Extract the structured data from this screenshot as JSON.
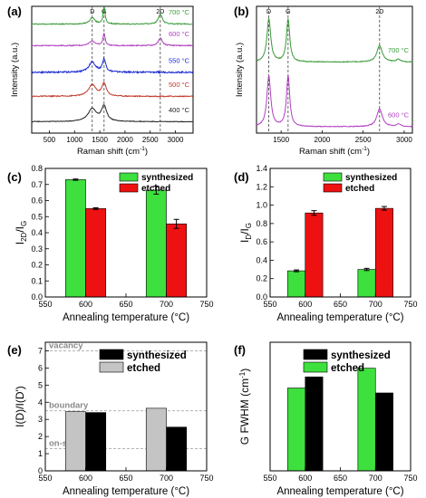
{
  "chart_data": [
    {
      "panel": "(a)",
      "type": "line",
      "xlabel": "Raman shift (cm",
      "xlabel_sup": "-1",
      "xlabel_end": ")",
      "ylabel": "Intensity (a.u.)",
      "xlim": [
        150,
        3350
      ],
      "x_ticks": [
        "500",
        "1000",
        "1500",
        "2000",
        "2500",
        "3000"
      ],
      "peak_markers": [
        {
          "label": "D",
          "x": 1350
        },
        {
          "label": "G",
          "x": 1585
        },
        {
          "label": "2D",
          "x": 2700
        }
      ],
      "series": [
        {
          "name": "700 °C",
          "color": "#3a9a3a",
          "offset": 0.86,
          "noise": 0.008,
          "peaks": [
            [
              1350,
              60,
              0.05
            ],
            [
              1585,
              25,
              0.13
            ],
            [
              2700,
              45,
              0.08
            ]
          ]
        },
        {
          "name": "600 °C",
          "color": "#b040c0",
          "offset": 0.69,
          "noise": 0.008,
          "peaks": [
            [
              1350,
              60,
              0.04
            ],
            [
              1585,
              25,
              0.1
            ],
            [
              2700,
              45,
              0.06
            ]
          ]
        },
        {
          "name": "550 °C",
          "color": "#1a2ad0",
          "offset": 0.48,
          "noise": 0.012,
          "peaks": [
            [
              1350,
              80,
              0.08
            ],
            [
              1585,
              40,
              0.1
            ]
          ]
        },
        {
          "name": "500 °C",
          "color": "#c0392b",
          "offset": 0.29,
          "noise": 0.008,
          "peaks": [
            [
              1350,
              90,
              0.09
            ],
            [
              1585,
              50,
              0.1
            ]
          ]
        },
        {
          "name": "400 °C",
          "color": "#222222",
          "offset": 0.09,
          "noise": 0.005,
          "peaks": [
            [
              1350,
              100,
              0.1
            ],
            [
              1585,
              60,
              0.12
            ]
          ]
        }
      ]
    },
    {
      "panel": "(b)",
      "type": "line",
      "xlabel": "Raman shift (cm",
      "xlabel_sup": "-1",
      "xlabel_end": ")",
      "ylabel": "Intensity (a.u.)",
      "xlim": [
        1200,
        3100
      ],
      "x_ticks": [
        "1500",
        "2000",
        "2500",
        "3000"
      ],
      "peak_markers": [
        {
          "label": "D",
          "x": 1350
        },
        {
          "label": "G",
          "x": 1585
        },
        {
          "label": "2D",
          "x": 2700
        }
      ],
      "series": [
        {
          "name": "700 °C",
          "color": "#3a9a3a",
          "offset": 0.56,
          "noise": 0.006,
          "peaks": [
            [
              1350,
              28,
              0.34
            ],
            [
              1585,
              24,
              0.34
            ],
            [
              2700,
              40,
              0.13
            ],
            [
              2930,
              30,
              0.02
            ]
          ]
        },
        {
          "name": "600 °C",
          "color": "#b040c0",
          "offset": 0.05,
          "noise": 0.006,
          "peaks": [
            [
              1350,
              28,
              0.4
            ],
            [
              1585,
              24,
              0.4
            ],
            [
              2700,
              40,
              0.14
            ],
            [
              2930,
              30,
              0.02
            ]
          ]
        }
      ]
    },
    {
      "panel": "(c)",
      "type": "bar",
      "xlabel": "Annealing temperature (°C)",
      "ylabel": "I",
      "ylabel_sub1": "2D",
      "ylabel_mid": "/I",
      "ylabel_sub2": "G",
      "xlim": [
        550,
        750
      ],
      "ylim": [
        0.0,
        0.8
      ],
      "x_ticks": [
        "550",
        "600",
        "650",
        "700",
        "750"
      ],
      "y_ticks": [
        "0.0",
        "0.1",
        "0.2",
        "0.3",
        "0.4",
        "0.5",
        "0.6",
        "0.7",
        "0.8"
      ],
      "categories": [
        600,
        700
      ],
      "bar_width": 25,
      "legend_position": "top-right",
      "series": [
        {
          "name": "synthesized",
          "color": "#3ee03e",
          "values": [
            0.73,
            0.665
          ],
          "errors": [
            0.004,
            0.025
          ]
        },
        {
          "name": "etched",
          "color": "#ee1111",
          "values": [
            0.55,
            0.455
          ],
          "errors": [
            0.005,
            0.028
          ]
        }
      ]
    },
    {
      "panel": "(d)",
      "type": "bar",
      "xlabel": "Annealing temperature (°C)",
      "ylabel": "I",
      "ylabel_sub1": "D",
      "ylabel_mid": "/I",
      "ylabel_sub2": "G",
      "xlim": [
        550,
        750
      ],
      "ylim": [
        0.0,
        1.4
      ],
      "x_ticks": [
        "550",
        "600",
        "650",
        "700",
        "750"
      ],
      "y_ticks": [
        "0.0",
        "0.2",
        "0.4",
        "0.6",
        "0.8",
        "1.0",
        "1.2",
        "1.4"
      ],
      "categories": [
        600,
        700
      ],
      "bar_width": 25,
      "legend_position": "top-right",
      "series": [
        {
          "name": "synthesized",
          "color": "#3ee03e",
          "values": [
            0.285,
            0.3
          ],
          "errors": [
            0.01,
            0.012
          ]
        },
        {
          "name": "etched",
          "color": "#ee1111",
          "values": [
            0.915,
            0.965
          ],
          "errors": [
            0.025,
            0.02
          ]
        }
      ]
    },
    {
      "panel": "(e)",
      "type": "bar",
      "xlabel": "Annealing temperature (°C)",
      "ylabel": "I(D)/I(D')",
      "xlim": [
        550,
        750
      ],
      "ylim": [
        0,
        7.5
      ],
      "x_ticks": [
        "550",
        "600",
        "650",
        "700",
        "750"
      ],
      "y_ticks": [
        "0",
        "1",
        "2",
        "3",
        "4",
        "5",
        "6",
        "7"
      ],
      "categories": [
        600,
        700
      ],
      "bar_width": 25,
      "legend_position": "top-right",
      "reference_lines": [
        {
          "label": "vacancy",
          "y": 7
        },
        {
          "label": "boundary",
          "y": 3.5
        },
        {
          "label": "on-site",
          "y": 1.3
        }
      ],
      "series": [
        {
          "name": "synthesized",
          "color": "#000000",
          "values": [
            3.4,
            2.55
          ],
          "order": 1
        },
        {
          "name": "etched",
          "color": "#c4c4c4",
          "values": [
            3.45,
            3.65
          ],
          "order": 0
        }
      ]
    },
    {
      "panel": "(f)",
      "type": "bar",
      "xlabel": "Annealing temperature (°C)",
      "ylabel": "G FWHM (cm",
      "ylabel_sup": "-1",
      "ylabel_end": ")",
      "xlim": [
        550,
        750
      ],
      "ylim": [
        0,
        52
      ],
      "x_ticks": [
        "550",
        "600",
        "650",
        "700",
        "750"
      ],
      "categories": [
        600,
        700
      ],
      "bar_width": 25,
      "legend_position": "top-right",
      "series": [
        {
          "name": "synthesized",
          "color": "#000000",
          "values": [
            38,
            31.5
          ],
          "order": 1
        },
        {
          "name": "etched",
          "color": "#3ee03e",
          "values": [
            33.5,
            41.5
          ],
          "order": 0
        }
      ]
    }
  ]
}
